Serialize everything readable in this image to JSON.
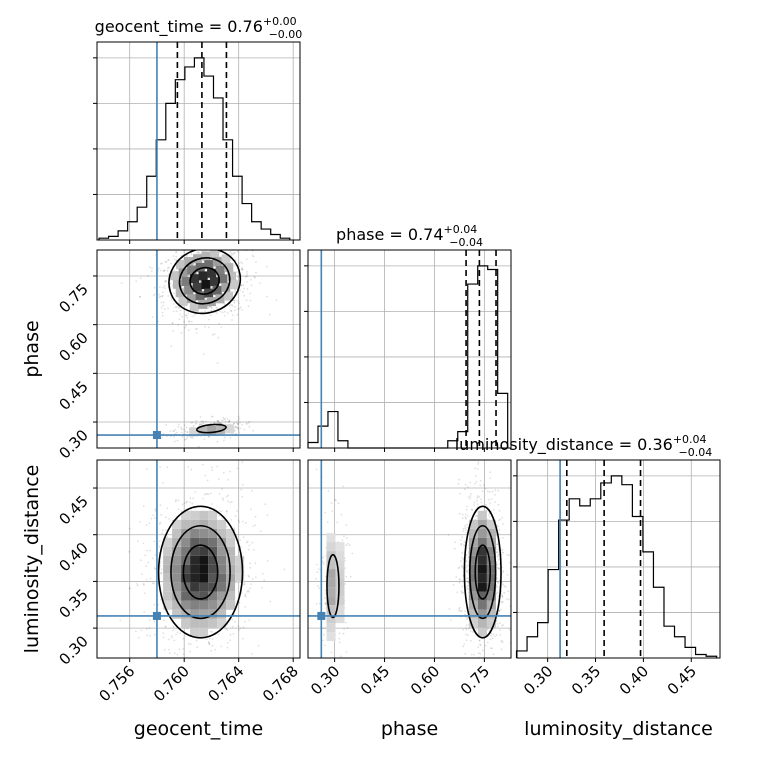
{
  "chart_data": {
    "type": "corner",
    "parameters": [
      "geocent_time",
      "phase",
      "luminosity_distance"
    ],
    "truths": {
      "geocent_time": 0.758,
      "phase": 0.26,
      "luminosity_distance": 0.313
    },
    "titles": [
      {
        "param": "geocent_time",
        "text": "geocent_time = 0.76",
        "sup": "+0.00",
        "sub": "−0.00"
      },
      {
        "param": "phase",
        "text": "phase = 0.74",
        "sup": "+0.04",
        "sub": "−0.04"
      },
      {
        "param": "luminosity_distance",
        "text": "luminosity_distance = 0.36",
        "sup": "+0.04",
        "sub": "−0.04"
      }
    ],
    "quantiles": {
      "geocent_time": [
        0.7595,
        0.7613,
        0.7631
      ],
      "phase": [
        0.695,
        0.735,
        0.785
      ],
      "luminosity_distance": [
        0.32,
        0.359,
        0.397
      ]
    },
    "ranges": {
      "geocent_time": [
        0.7536,
        0.7685
      ],
      "phase": [
        0.22,
        0.83
      ],
      "luminosity_distance": [
        0.268,
        0.48
      ]
    },
    "ticks": {
      "geocent_time": [
        "0.756",
        "0.760",
        "0.764",
        "0.768"
      ],
      "phase": [
        "0.30",
        "0.45",
        "0.60",
        "0.75"
      ],
      "luminosity_distance": [
        "0.30",
        "0.35",
        "0.40",
        "0.45"
      ]
    },
    "axis_labels": {
      "geocent_time": "geocent_time",
      "phase": "phase",
      "luminosity_distance": "luminosity_distance"
    },
    "histograms": {
      "geocent_time": {
        "bins": [
          0.7541,
          0.7548,
          0.7555,
          0.7562,
          0.7569,
          0.7576,
          0.7583,
          0.759,
          0.7597,
          0.7604,
          0.7611,
          0.7618,
          0.7625,
          0.7632,
          0.7639,
          0.7646,
          0.7653,
          0.766,
          0.7667,
          0.7674
        ],
        "counts": [
          1,
          2,
          5,
          10,
          18,
          35,
          55,
          75,
          88,
          95,
          100,
          90,
          78,
          55,
          35,
          20,
          10,
          6,
          3,
          1
        ]
      },
      "phase": {
        "bins": [
          0.235,
          0.265,
          0.295,
          0.325,
          0.355,
          0.385,
          0.415,
          0.445,
          0.475,
          0.505,
          0.535,
          0.565,
          0.595,
          0.625,
          0.655,
          0.685,
          0.715,
          0.745,
          0.775,
          0.805
        ],
        "counts": [
          3,
          12,
          20,
          4,
          0,
          0,
          0,
          0,
          0,
          0,
          0,
          0,
          0,
          0,
          4,
          9,
          90,
          100,
          98,
          30
        ]
      },
      "luminosity_distance": {
        "bins": [
          0.273,
          0.284,
          0.295,
          0.306,
          0.317,
          0.328,
          0.339,
          0.35,
          0.361,
          0.372,
          0.383,
          0.394,
          0.405,
          0.416,
          0.427,
          0.438,
          0.449,
          0.46,
          0.471
        ],
        "counts": [
          4,
          12,
          20,
          50,
          78,
          90,
          86,
          90,
          99,
          103,
          98,
          80,
          60,
          40,
          18,
          12,
          6,
          2,
          1
        ]
      }
    },
    "joint": {
      "phase_vs_geocent_time": [
        {
          "x": 0.7615,
          "y": 0.735,
          "sx": 0.0012,
          "sy": 0.045,
          "w": 1.0,
          "angle": 18
        },
        {
          "x": 0.762,
          "y": 0.28,
          "sx": 0.0009,
          "sy": 0.01,
          "w": 0.3,
          "angle": 5
        }
      ],
      "luminosity_distance_vs_geocent_time": [
        {
          "x": 0.7612,
          "y": 0.36,
          "sx": 0.0014,
          "sy": 0.032,
          "w": 1.0,
          "angle": 0
        }
      ],
      "luminosity_distance_vs_phase": [
        {
          "x": 0.745,
          "y": 0.36,
          "sx": 0.025,
          "sy": 0.032,
          "w": 1.0,
          "angle": 0
        },
        {
          "x": 0.295,
          "y": 0.345,
          "sx": 0.015,
          "sy": 0.028,
          "w": 0.2,
          "angle": 0
        }
      ]
    },
    "grid": true
  }
}
